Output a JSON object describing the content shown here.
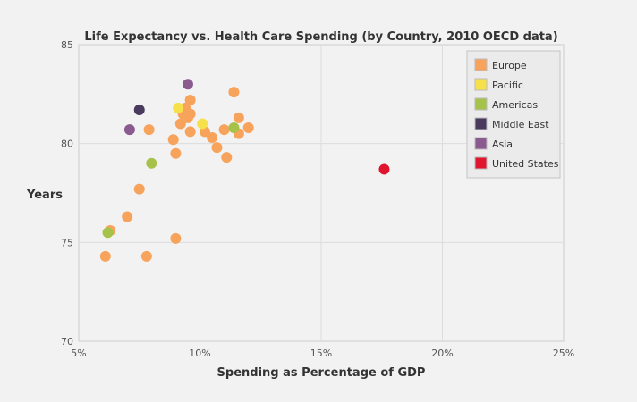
{
  "chart_data": {
    "type": "scatter",
    "title": "Life Expectancy vs. Health Care Spending (by Country, 2010 OECD data)",
    "xlabel": "Spending as Percentage of GDP",
    "ylabel": "Years",
    "xlim": [
      5,
      25
    ],
    "ylim": [
      70,
      85
    ],
    "x_ticks": [
      "5%",
      "10%",
      "15%",
      "20%",
      "25%"
    ],
    "y_ticks": [
      "70",
      "75",
      "80",
      "85"
    ],
    "grid": true,
    "legend_position": "top-right",
    "colors": {
      "Europe": "#f7a35c",
      "Pacific": "#f7e14a",
      "Americas": "#a6c24a",
      "Middle East": "#4a3b5e",
      "Asia": "#8b5a8f",
      "United States": "#e0152e"
    },
    "series": [
      {
        "name": "Europe",
        "points": [
          [
            6.1,
            74.3
          ],
          [
            6.3,
            75.6
          ],
          [
            7.0,
            76.3
          ],
          [
            7.5,
            77.7
          ],
          [
            7.8,
            74.3
          ],
          [
            7.9,
            80.7
          ],
          [
            8.9,
            80.2
          ],
          [
            9.0,
            79.5
          ],
          [
            9.0,
            75.2
          ],
          [
            9.2,
            81.0
          ],
          [
            9.3,
            81.5
          ],
          [
            9.4,
            81.8
          ],
          [
            9.5,
            81.3
          ],
          [
            9.6,
            81.5
          ],
          [
            9.6,
            82.2
          ],
          [
            9.6,
            80.6
          ],
          [
            10.2,
            80.6
          ],
          [
            10.5,
            80.3
          ],
          [
            10.7,
            79.8
          ],
          [
            11.0,
            80.7
          ],
          [
            11.1,
            79.3
          ],
          [
            11.4,
            82.6
          ],
          [
            11.6,
            81.3
          ],
          [
            11.6,
            80.5
          ],
          [
            12.0,
            80.8
          ]
        ]
      },
      {
        "name": "Pacific",
        "points": [
          [
            9.1,
            81.8
          ],
          [
            10.1,
            81.0
          ]
        ]
      },
      {
        "name": "Americas",
        "points": [
          [
            6.2,
            75.5
          ],
          [
            8.0,
            79.0
          ],
          [
            11.4,
            80.8
          ]
        ]
      },
      {
        "name": "Middle East",
        "points": [
          [
            7.5,
            81.7
          ]
        ]
      },
      {
        "name": "Asia",
        "points": [
          [
            7.1,
            80.7
          ],
          [
            9.5,
            83.0
          ]
        ]
      },
      {
        "name": "United States",
        "points": [
          [
            17.6,
            78.7
          ]
        ]
      }
    ]
  }
}
